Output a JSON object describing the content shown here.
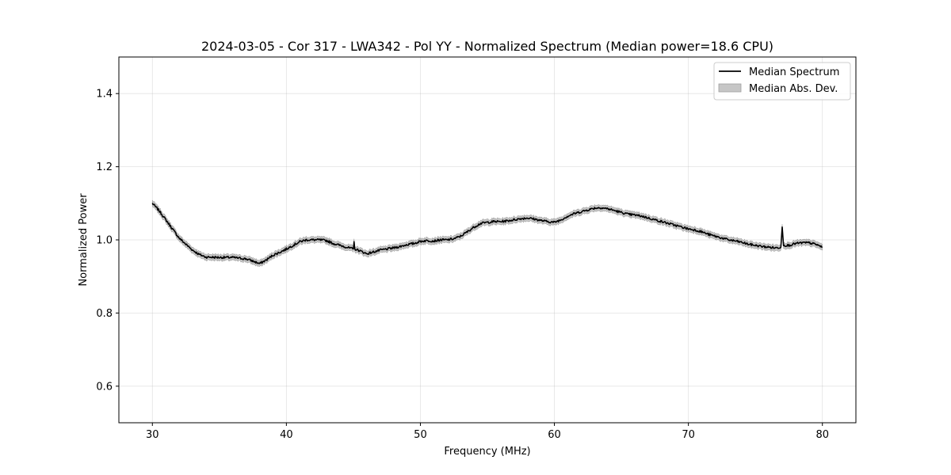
{
  "chart_data": {
    "type": "line",
    "title": "2024-03-05 - Cor 317 - LWA342 - Pol YY - Normalized Spectrum (Median power=18.6 CPU)",
    "xlabel": "Frequency (MHz)",
    "ylabel": "Normalized Power",
    "xlim": [
      27.5,
      82.5
    ],
    "ylim": [
      0.5,
      1.5
    ],
    "xticks": [
      30,
      40,
      50,
      60,
      70,
      80
    ],
    "yticks": [
      0.6,
      0.8,
      1.0,
      1.2,
      1.4
    ],
    "grid": true,
    "legend_position": "top-right",
    "legend": [
      "Median Spectrum",
      "Median Abs. Dev."
    ],
    "colors": {
      "line": "#000000",
      "band": "#a0a0a0"
    },
    "series": [
      {
        "name": "Median Spectrum",
        "x": [
          30,
          30.5,
          31,
          31.5,
          32,
          32.5,
          33,
          33.5,
          34,
          35,
          36,
          37,
          37.5,
          38,
          38.5,
          39,
          39.5,
          40,
          40.5,
          41,
          41.5,
          42,
          42.5,
          43,
          43.5,
          44,
          44.5,
          45,
          45.05,
          45.1,
          45.5,
          46,
          46.5,
          47,
          47.5,
          48,
          48.5,
          49,
          49.5,
          50,
          50.5,
          51,
          51.5,
          52,
          52.5,
          53,
          53.5,
          54,
          54.5,
          55,
          55.5,
          56,
          56.5,
          57,
          57.5,
          58,
          58.5,
          59,
          59.5,
          60,
          60.5,
          61,
          61.5,
          62,
          62.5,
          63,
          63.5,
          64,
          64.5,
          65,
          65.5,
          66,
          66.5,
          67,
          67.5,
          68,
          68.5,
          69,
          69.5,
          70,
          70.5,
          71,
          71.5,
          72,
          72.5,
          73,
          73.5,
          74,
          74.5,
          75,
          75.5,
          76,
          76.5,
          76.9,
          77.0,
          77.1,
          77.5,
          78,
          78.5,
          79,
          79.5,
          80
        ],
        "values": [
          1.1,
          1.08,
          1.055,
          1.03,
          1.005,
          0.988,
          0.972,
          0.96,
          0.953,
          0.952,
          0.952,
          0.948,
          0.942,
          0.935,
          0.945,
          0.958,
          0.966,
          0.975,
          0.985,
          0.995,
          1.0,
          1.0,
          1.0,
          0.998,
          0.99,
          0.985,
          0.98,
          0.975,
          0.995,
          0.975,
          0.97,
          0.962,
          0.967,
          0.972,
          0.975,
          0.978,
          0.982,
          0.987,
          0.99,
          0.996,
          0.998,
          0.997,
          1.0,
          1.0,
          1.003,
          1.01,
          1.022,
          1.035,
          1.045,
          1.048,
          1.05,
          1.05,
          1.052,
          1.055,
          1.058,
          1.06,
          1.057,
          1.053,
          1.05,
          1.048,
          1.055,
          1.065,
          1.072,
          1.077,
          1.082,
          1.087,
          1.088,
          1.085,
          1.08,
          1.075,
          1.07,
          1.068,
          1.065,
          1.06,
          1.055,
          1.05,
          1.045,
          1.04,
          1.035,
          1.03,
          1.027,
          1.022,
          1.015,
          1.01,
          1.005,
          1.0,
          0.997,
          0.993,
          0.988,
          0.985,
          0.982,
          0.98,
          0.978,
          0.98,
          1.035,
          0.985,
          0.985,
          0.99,
          0.992,
          0.992,
          0.988,
          0.98
        ]
      },
      {
        "name": "Median Abs. Dev.",
        "halfwidth": 0.008
      }
    ]
  }
}
